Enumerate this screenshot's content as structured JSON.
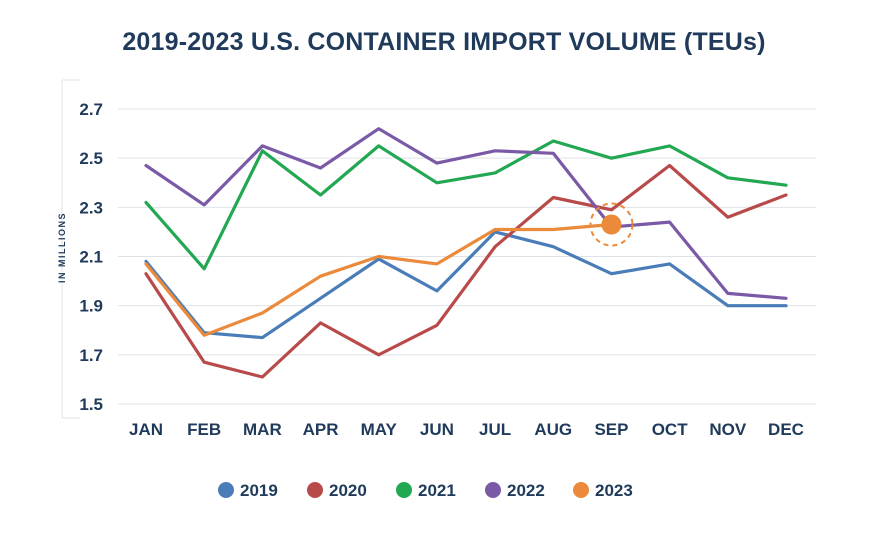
{
  "chart_data": {
    "type": "line",
    "title": "2019-2023 U.S. CONTAINER IMPORT VOLUME (TEUs)",
    "ylabel": "IN MILLIONS",
    "xlabel": "",
    "ylim": [
      1.5,
      2.7
    ],
    "yticks": [
      "2.7",
      "2.5",
      "2.3",
      "2.1",
      "1.9",
      "1.7",
      "1.5"
    ],
    "ytick_values": [
      2.7,
      2.5,
      2.3,
      2.1,
      1.9,
      1.7,
      1.5
    ],
    "categories": [
      "JAN",
      "FEB",
      "MAR",
      "APR",
      "MAY",
      "JUN",
      "JUL",
      "AUG",
      "SEP",
      "OCT",
      "NOV",
      "DEC"
    ],
    "grid": true,
    "legend_position": "bottom",
    "series": [
      {
        "name": "2019",
        "color": "#4a7db8",
        "values": [
          2.08,
          1.79,
          1.77,
          1.93,
          2.09,
          1.96,
          2.2,
          2.14,
          2.03,
          2.07,
          1.9,
          1.9
        ]
      },
      {
        "name": "2020",
        "color": "#b84a4a",
        "values": [
          2.03,
          1.67,
          1.61,
          1.83,
          1.7,
          1.82,
          2.14,
          2.34,
          2.29,
          2.47,
          2.26,
          2.35
        ]
      },
      {
        "name": "2021",
        "color": "#22a752",
        "values": [
          2.32,
          2.05,
          2.53,
          2.35,
          2.55,
          2.4,
          2.44,
          2.57,
          2.5,
          2.55,
          2.42,
          2.39
        ]
      },
      {
        "name": "2022",
        "color": "#7a5aa6",
        "values": [
          2.47,
          2.31,
          2.55,
          2.46,
          2.62,
          2.48,
          2.53,
          2.52,
          2.22,
          2.24,
          1.95,
          1.93
        ]
      },
      {
        "name": "2023",
        "color": "#ea8a3a",
        "values": [
          2.07,
          1.78,
          1.87,
          2.02,
          2.1,
          2.07,
          2.21,
          2.21,
          2.23,
          null,
          null,
          null
        ]
      }
    ],
    "highlight": {
      "series": "2023",
      "category": "SEP",
      "value": 2.23
    }
  }
}
